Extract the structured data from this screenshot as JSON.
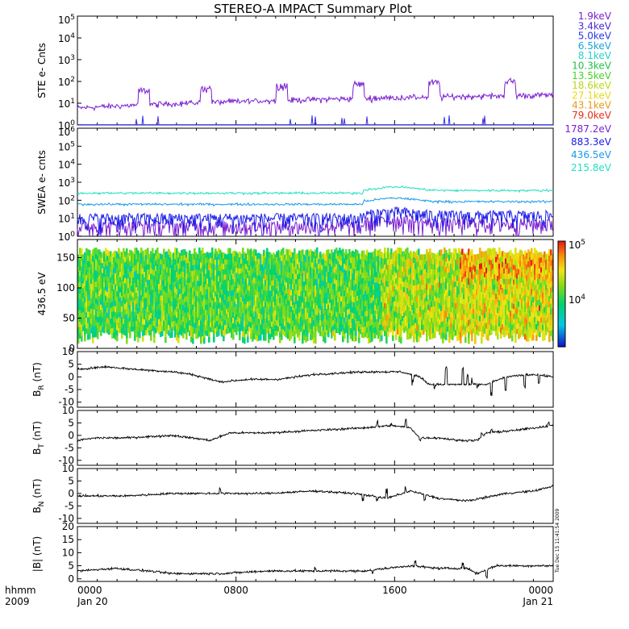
{
  "title": "STEREO-A IMPACT Summary Plot",
  "colors": {
    "ste": [
      "#7a1fd0",
      "#4a2ad8",
      "#2a38e8",
      "#1aa4d8",
      "#22d2c8",
      "#22c24a",
      "#4ad12a",
      "#b8d81a",
      "#e8d81a",
      "#e89a1a",
      "#e8301a"
    ],
    "swea": [
      "#7a1fd0",
      "#1a1ae8",
      "#1a9ae8",
      "#22e0c0"
    ]
  },
  "chart_data": [
    {
      "type": "line",
      "ylabel": "STE e- Cnts",
      "yscale": "log",
      "ylim": [
        1,
        100000
      ],
      "ytick_labels": [
        "10^0",
        "10^1",
        "10^2",
        "10^3",
        "10^4",
        "10^5"
      ],
      "series": [
        {
          "name": "1.9keV",
          "level": 6,
          "rise": 3,
          "spikes": [
            0.14,
            0.27,
            0.43,
            0.59,
            0.75,
            0.91
          ]
        },
        {
          "name": "3.4keV",
          "level": 0.55,
          "rise": 0.1,
          "spikes": []
        },
        {
          "name": "5.0keV",
          "level": 0.5,
          "rise": 0.1,
          "spikes": []
        },
        {
          "name": "6.5keV"
        },
        {
          "name": "8.1keV"
        },
        {
          "name": "10.3keV"
        },
        {
          "name": "13.5keV"
        },
        {
          "name": "18.6keV"
        },
        {
          "name": "27.1keV"
        },
        {
          "name": "43.1keV"
        },
        {
          "name": "79.0keV"
        }
      ]
    },
    {
      "type": "line",
      "ylabel": "SWEA e- cnts",
      "yscale": "log",
      "ylim": [
        1,
        1000000
      ],
      "ytick_labels": [
        "10^0",
        "10^1",
        "10^2",
        "10^3",
        "10^4",
        "10^5",
        "10^6"
      ],
      "series": [
        {
          "name": "1787.2eV",
          "level": 3
        },
        {
          "name": "883.3eV",
          "level": 8
        },
        {
          "name": "436.5eV",
          "level": 60
        },
        {
          "name": "215.8eV",
          "level": 250
        }
      ]
    },
    {
      "type": "heatmap",
      "ylabel": "436.5 eV",
      "ylim": [
        0,
        180
      ],
      "yticks": [
        0,
        50,
        100,
        150
      ],
      "ytick_labels": [
        "0",
        "50",
        "100",
        "150"
      ],
      "colorbar": {
        "scale": "log",
        "range": [
          1500,
          100000
        ],
        "ticks": [
          10000,
          100000
        ],
        "tick_labels": [
          "10^4",
          "10^5"
        ]
      }
    },
    {
      "type": "line",
      "ylabel": "B_R (nT)",
      "ylim": [
        -12,
        10
      ],
      "yticks": [
        -10,
        -5,
        0,
        5,
        10
      ],
      "ytick_labels": [
        "-10",
        "-5",
        "0",
        "5",
        "10"
      ],
      "knots": [
        [
          0,
          3
        ],
        [
          0.06,
          4
        ],
        [
          0.12,
          3
        ],
        [
          0.2,
          2
        ],
        [
          0.24,
          1
        ],
        [
          0.3,
          -2
        ],
        [
          0.36,
          -1
        ],
        [
          0.42,
          -1
        ],
        [
          0.5,
          1
        ],
        [
          0.6,
          2
        ],
        [
          0.68,
          2
        ],
        [
          0.72,
          0
        ],
        [
          0.74,
          -3
        ],
        [
          0.78,
          -3
        ],
        [
          0.86,
          -3
        ],
        [
          0.9,
          0
        ],
        [
          0.96,
          1
        ],
        [
          1,
          0
        ]
      ],
      "jumps": [
        [
          0.705,
          -2
        ],
        [
          0.75,
          -4
        ],
        [
          0.775,
          3
        ],
        [
          0.81,
          3
        ],
        [
          0.82,
          0
        ],
        [
          0.83,
          -2
        ],
        [
          0.84,
          -4
        ],
        [
          0.87,
          -7
        ],
        [
          0.9,
          -6
        ],
        [
          0.94,
          -4
        ],
        [
          0.97,
          -2
        ]
      ]
    },
    {
      "type": "line",
      "ylabel": "B_T (nT)",
      "ylim": [
        -12,
        10
      ],
      "yticks": [
        -10,
        -5,
        0,
        5,
        10
      ],
      "ytick_labels": [
        "-10",
        "-5",
        "0",
        "5",
        "10"
      ],
      "knots": [
        [
          0,
          -2
        ],
        [
          0.04,
          -1
        ],
        [
          0.1,
          -1
        ],
        [
          0.2,
          0
        ],
        [
          0.28,
          -2
        ],
        [
          0.32,
          1
        ],
        [
          0.4,
          1
        ],
        [
          0.5,
          2
        ],
        [
          0.6,
          3
        ],
        [
          0.66,
          4
        ],
        [
          0.7,
          3
        ],
        [
          0.72,
          -1
        ],
        [
          0.76,
          -1
        ],
        [
          0.8,
          -2
        ],
        [
          0.84,
          -2
        ],
        [
          0.86,
          1
        ],
        [
          0.92,
          2
        ],
        [
          1,
          4
        ]
      ],
      "jumps": [
        [
          0.63,
          5
        ],
        [
          0.66,
          4
        ],
        [
          0.69,
          6
        ],
        [
          0.72,
          -2
        ],
        [
          0.85,
          0
        ],
        [
          0.87,
          2
        ],
        [
          0.95,
          3
        ],
        [
          0.99,
          5
        ]
      ]
    },
    {
      "type": "line",
      "ylabel": "B_N (nT)",
      "ylim": [
        -12,
        10
      ],
      "yticks": [
        -10,
        -5,
        0,
        5,
        10
      ],
      "ytick_labels": [
        "-10",
        "-5",
        "0",
        "5",
        "10"
      ],
      "knots": [
        [
          0,
          -1
        ],
        [
          0.1,
          -1
        ],
        [
          0.2,
          0
        ],
        [
          0.3,
          0
        ],
        [
          0.4,
          0
        ],
        [
          0.5,
          1
        ],
        [
          0.58,
          0
        ],
        [
          0.62,
          -1
        ],
        [
          0.65,
          -2
        ],
        [
          0.7,
          1
        ],
        [
          0.72,
          0
        ],
        [
          0.74,
          -1
        ],
        [
          0.76,
          -2
        ],
        [
          0.82,
          -3
        ],
        [
          0.9,
          0
        ],
        [
          0.96,
          1
        ],
        [
          1,
          3
        ]
      ],
      "jumps": [
        [
          0.3,
          2
        ],
        [
          0.6,
          -3
        ],
        [
          0.63,
          -2
        ],
        [
          0.65,
          1
        ],
        [
          0.69,
          2
        ],
        [
          0.73,
          -3
        ]
      ]
    },
    {
      "type": "line",
      "ylabel": "|B| (nT)",
      "ylim": [
        -1,
        20
      ],
      "yticks": [
        0,
        5,
        10,
        15,
        20
      ],
      "ytick_labels": [
        "0",
        "5",
        "10",
        "15",
        "20"
      ],
      "knots": [
        [
          0,
          3
        ],
        [
          0.08,
          4
        ],
        [
          0.15,
          3
        ],
        [
          0.2,
          2
        ],
        [
          0.3,
          2
        ],
        [
          0.4,
          3
        ],
        [
          0.5,
          3
        ],
        [
          0.6,
          3
        ],
        [
          0.65,
          4
        ],
        [
          0.7,
          5
        ],
        [
          0.76,
          4
        ],
        [
          0.82,
          4
        ],
        [
          0.84,
          2
        ],
        [
          0.88,
          5
        ],
        [
          0.94,
          5
        ],
        [
          1,
          5
        ]
      ],
      "jumps": [
        [
          0.5,
          4
        ],
        [
          0.62,
          2
        ],
        [
          0.71,
          6
        ],
        [
          0.81,
          6
        ],
        [
          0.86,
          1
        ]
      ]
    }
  ],
  "x_axis": {
    "label_top": "hhmm",
    "label_bottom": "2009",
    "ticks": [
      {
        "pos": 0,
        "top": "0000",
        "bottom": "Jan 20"
      },
      {
        "pos": 0.3333,
        "top": "0800",
        "bottom": ""
      },
      {
        "pos": 0.6667,
        "top": "1600",
        "bottom": ""
      },
      {
        "pos": 1,
        "top": "0000",
        "bottom": "Jan 21"
      }
    ]
  },
  "timestamp": "Tue Dec 15 11:41:54 2009"
}
